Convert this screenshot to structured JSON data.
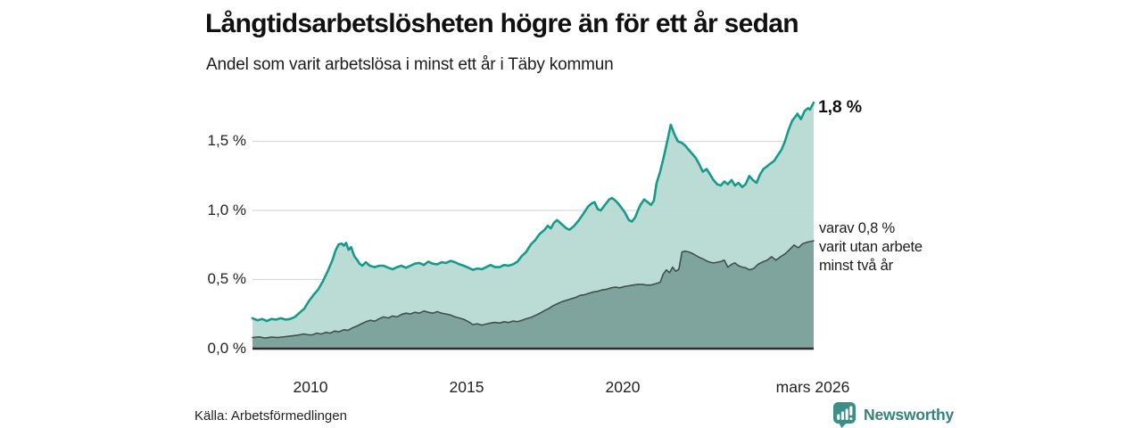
{
  "chart_data": {
    "type": "area",
    "title": "Långtidsarbetslösheten högre än för ett år sedan",
    "subtitle": "Andel som varit arbetslösa i minst ett år i Täby kommun",
    "xlabel": "",
    "ylabel": "",
    "x_domain": [
      2008.14,
      2026.12
    ],
    "ylim": [
      0,
      1.85
    ],
    "grid": "horizontal",
    "legend_position": "none-direct-labels",
    "x_ticks": [
      2010,
      2015,
      2020,
      2026.17
    ],
    "x_tick_labels": [
      "2010",
      "2015",
      "2020",
      "mars 2026"
    ],
    "y_ticks": [
      0,
      0.5,
      1.0,
      1.5
    ],
    "y_tick_labels": [
      "0,0 %",
      "0,5 %",
      "1,0 %",
      "1,5 %"
    ],
    "annotations": {
      "latest_total": {
        "text": "1,8 %",
        "value": 1.8
      },
      "subset": {
        "lines": [
          "varav 0,8 %",
          "varit utan arbete",
          "minst två år"
        ],
        "value": 0.8
      }
    },
    "series": [
      {
        "name": "Arbetslösa minst ett år",
        "stroke": "#179a8c",
        "fill": "#b5d9d2",
        "stroke_width": 2.6,
        "points": [
          [
            2008.14,
            0.22
          ],
          [
            2008.3,
            0.205
          ],
          [
            2008.45,
            0.215
          ],
          [
            2008.6,
            0.2
          ],
          [
            2008.75,
            0.215
          ],
          [
            2008.9,
            0.21
          ],
          [
            2009.05,
            0.22
          ],
          [
            2009.2,
            0.21
          ],
          [
            2009.35,
            0.215
          ],
          [
            2009.5,
            0.23
          ],
          [
            2009.65,
            0.26
          ],
          [
            2009.8,
            0.29
          ],
          [
            2009.95,
            0.345
          ],
          [
            2010.1,
            0.39
          ],
          [
            2010.25,
            0.43
          ],
          [
            2010.4,
            0.49
          ],
          [
            2010.55,
            0.56
          ],
          [
            2010.7,
            0.64
          ],
          [
            2010.8,
            0.71
          ],
          [
            2010.9,
            0.755
          ],
          [
            2011.0,
            0.76
          ],
          [
            2011.07,
            0.745
          ],
          [
            2011.14,
            0.765
          ],
          [
            2011.22,
            0.715
          ],
          [
            2011.3,
            0.735
          ],
          [
            2011.4,
            0.67
          ],
          [
            2011.5,
            0.64
          ],
          [
            2011.57,
            0.615
          ],
          [
            2011.66,
            0.6
          ],
          [
            2011.77,
            0.625
          ],
          [
            2011.9,
            0.6
          ],
          [
            2012.06,
            0.59
          ],
          [
            2012.2,
            0.6
          ],
          [
            2012.34,
            0.6
          ],
          [
            2012.49,
            0.585
          ],
          [
            2012.63,
            0.575
          ],
          [
            2012.77,
            0.59
          ],
          [
            2012.91,
            0.6
          ],
          [
            2013.06,
            0.585
          ],
          [
            2013.2,
            0.6
          ],
          [
            2013.34,
            0.615
          ],
          [
            2013.49,
            0.62
          ],
          [
            2013.63,
            0.605
          ],
          [
            2013.77,
            0.63
          ],
          [
            2013.91,
            0.615
          ],
          [
            2014.06,
            0.61
          ],
          [
            2014.2,
            0.625
          ],
          [
            2014.34,
            0.62
          ],
          [
            2014.49,
            0.635
          ],
          [
            2014.63,
            0.625
          ],
          [
            2014.77,
            0.61
          ],
          [
            2014.91,
            0.6
          ],
          [
            2015.06,
            0.585
          ],
          [
            2015.2,
            0.57
          ],
          [
            2015.34,
            0.58
          ],
          [
            2015.49,
            0.575
          ],
          [
            2015.63,
            0.59
          ],
          [
            2015.77,
            0.605
          ],
          [
            2015.91,
            0.59
          ],
          [
            2016.06,
            0.59
          ],
          [
            2016.2,
            0.605
          ],
          [
            2016.34,
            0.6
          ],
          [
            2016.49,
            0.61
          ],
          [
            2016.63,
            0.63
          ],
          [
            2016.77,
            0.67
          ],
          [
            2016.91,
            0.7
          ],
          [
            2017.06,
            0.755
          ],
          [
            2017.2,
            0.785
          ],
          [
            2017.34,
            0.83
          ],
          [
            2017.5,
            0.86
          ],
          [
            2017.6,
            0.89
          ],
          [
            2017.7,
            0.87
          ],
          [
            2017.8,
            0.91
          ],
          [
            2017.9,
            0.93
          ],
          [
            2018.0,
            0.91
          ],
          [
            2018.1,
            0.89
          ],
          [
            2018.2,
            0.87
          ],
          [
            2018.3,
            0.86
          ],
          [
            2018.45,
            0.89
          ],
          [
            2018.6,
            0.93
          ],
          [
            2018.75,
            0.98
          ],
          [
            2018.9,
            1.03
          ],
          [
            2019.0,
            1.05
          ],
          [
            2019.1,
            1.06
          ],
          [
            2019.2,
            1.01
          ],
          [
            2019.3,
            1.0
          ],
          [
            2019.43,
            1.04
          ],
          [
            2019.57,
            1.08
          ],
          [
            2019.66,
            1.09
          ],
          [
            2019.77,
            1.07
          ],
          [
            2019.86,
            1.05
          ],
          [
            2020.06,
            0.99
          ],
          [
            2020.2,
            0.93
          ],
          [
            2020.3,
            0.92
          ],
          [
            2020.4,
            0.95
          ],
          [
            2020.49,
            1.0
          ],
          [
            2020.57,
            1.04
          ],
          [
            2020.69,
            1.08
          ],
          [
            2020.8,
            1.06
          ],
          [
            2020.91,
            1.04
          ],
          [
            2021.0,
            1.07
          ],
          [
            2021.09,
            1.2
          ],
          [
            2021.2,
            1.28
          ],
          [
            2021.31,
            1.38
          ],
          [
            2021.43,
            1.5
          ],
          [
            2021.54,
            1.62
          ],
          [
            2021.66,
            1.55
          ],
          [
            2021.77,
            1.5
          ],
          [
            2021.89,
            1.49
          ],
          [
            2022.0,
            1.47
          ],
          [
            2022.11,
            1.44
          ],
          [
            2022.23,
            1.41
          ],
          [
            2022.34,
            1.38
          ],
          [
            2022.46,
            1.33
          ],
          [
            2022.57,
            1.28
          ],
          [
            2022.69,
            1.3
          ],
          [
            2022.8,
            1.26
          ],
          [
            2022.91,
            1.22
          ],
          [
            2023.03,
            1.19
          ],
          [
            2023.14,
            1.18
          ],
          [
            2023.26,
            1.21
          ],
          [
            2023.37,
            1.19
          ],
          [
            2023.49,
            1.22
          ],
          [
            2023.6,
            1.18
          ],
          [
            2023.71,
            1.2
          ],
          [
            2023.83,
            1.17
          ],
          [
            2023.94,
            1.19
          ],
          [
            2024.06,
            1.25
          ],
          [
            2024.17,
            1.22
          ],
          [
            2024.29,
            1.2
          ],
          [
            2024.4,
            1.26
          ],
          [
            2024.51,
            1.3
          ],
          [
            2024.63,
            1.32
          ],
          [
            2024.74,
            1.34
          ],
          [
            2024.86,
            1.36
          ],
          [
            2024.97,
            1.4
          ],
          [
            2025.09,
            1.44
          ],
          [
            2025.2,
            1.5
          ],
          [
            2025.31,
            1.58
          ],
          [
            2025.43,
            1.65
          ],
          [
            2025.54,
            1.68
          ],
          [
            2025.6,
            1.7
          ],
          [
            2025.71,
            1.66
          ],
          [
            2025.83,
            1.72
          ],
          [
            2025.94,
            1.74
          ],
          [
            2026.0,
            1.73
          ],
          [
            2026.12,
            1.78
          ]
        ]
      },
      {
        "name": "Varav utan arbete minst två år",
        "stroke": "#41504c",
        "fill": "#7ea49d",
        "stroke_width": 1.6,
        "points": [
          [
            2008.14,
            0.08
          ],
          [
            2008.35,
            0.085
          ],
          [
            2008.55,
            0.077
          ],
          [
            2008.75,
            0.083
          ],
          [
            2008.95,
            0.08
          ],
          [
            2009.2,
            0.087
          ],
          [
            2009.4,
            0.092
          ],
          [
            2009.6,
            0.098
          ],
          [
            2009.77,
            0.106
          ],
          [
            2009.95,
            0.1
          ],
          [
            2010.06,
            0.1
          ],
          [
            2010.2,
            0.112
          ],
          [
            2010.34,
            0.106
          ],
          [
            2010.49,
            0.118
          ],
          [
            2010.63,
            0.112
          ],
          [
            2010.77,
            0.127
          ],
          [
            2010.91,
            0.122
          ],
          [
            2011.06,
            0.137
          ],
          [
            2011.2,
            0.133
          ],
          [
            2011.34,
            0.15
          ],
          [
            2011.49,
            0.164
          ],
          [
            2011.63,
            0.18
          ],
          [
            2011.77,
            0.195
          ],
          [
            2011.91,
            0.205
          ],
          [
            2012.06,
            0.199
          ],
          [
            2012.2,
            0.216
          ],
          [
            2012.34,
            0.23
          ],
          [
            2012.49,
            0.222
          ],
          [
            2012.63,
            0.236
          ],
          [
            2012.77,
            0.23
          ],
          [
            2012.91,
            0.247
          ],
          [
            2013.06,
            0.257
          ],
          [
            2013.2,
            0.251
          ],
          [
            2013.34,
            0.263
          ],
          [
            2013.49,
            0.257
          ],
          [
            2013.63,
            0.272
          ],
          [
            2013.77,
            0.263
          ],
          [
            2013.91,
            0.257
          ],
          [
            2014.06,
            0.268
          ],
          [
            2014.2,
            0.257
          ],
          [
            2014.34,
            0.251
          ],
          [
            2014.49,
            0.243
          ],
          [
            2014.63,
            0.23
          ],
          [
            2014.77,
            0.222
          ],
          [
            2014.91,
            0.212
          ],
          [
            2015.06,
            0.195
          ],
          [
            2015.2,
            0.174
          ],
          [
            2015.34,
            0.18
          ],
          [
            2015.49,
            0.17
          ],
          [
            2015.63,
            0.178
          ],
          [
            2015.77,
            0.185
          ],
          [
            2015.91,
            0.19
          ],
          [
            2016.06,
            0.185
          ],
          [
            2016.2,
            0.195
          ],
          [
            2016.34,
            0.189
          ],
          [
            2016.49,
            0.2
          ],
          [
            2016.63,
            0.195
          ],
          [
            2016.77,
            0.205
          ],
          [
            2016.91,
            0.216
          ],
          [
            2017.06,
            0.226
          ],
          [
            2017.2,
            0.24
          ],
          [
            2017.34,
            0.255
          ],
          [
            2017.49,
            0.275
          ],
          [
            2017.63,
            0.29
          ],
          [
            2017.77,
            0.31
          ],
          [
            2017.91,
            0.325
          ],
          [
            2018.06,
            0.34
          ],
          [
            2018.2,
            0.35
          ],
          [
            2018.34,
            0.36
          ],
          [
            2018.49,
            0.37
          ],
          [
            2018.63,
            0.385
          ],
          [
            2018.77,
            0.39
          ],
          [
            2018.91,
            0.4
          ],
          [
            2019.06,
            0.41
          ],
          [
            2019.2,
            0.415
          ],
          [
            2019.34,
            0.425
          ],
          [
            2019.49,
            0.43
          ],
          [
            2019.63,
            0.44
          ],
          [
            2019.77,
            0.445
          ],
          [
            2019.91,
            0.44
          ],
          [
            2020.06,
            0.45
          ],
          [
            2020.2,
            0.455
          ],
          [
            2020.34,
            0.46
          ],
          [
            2020.49,
            0.465
          ],
          [
            2020.63,
            0.465
          ],
          [
            2020.77,
            0.46
          ],
          [
            2020.91,
            0.46
          ],
          [
            2021.06,
            0.47
          ],
          [
            2021.2,
            0.48
          ],
          [
            2021.3,
            0.54
          ],
          [
            2021.4,
            0.57
          ],
          [
            2021.5,
            0.55
          ],
          [
            2021.6,
            0.59
          ],
          [
            2021.7,
            0.56
          ],
          [
            2021.8,
            0.575
          ],
          [
            2021.9,
            0.7
          ],
          [
            2022.0,
            0.705
          ],
          [
            2022.11,
            0.7
          ],
          [
            2022.23,
            0.69
          ],
          [
            2022.34,
            0.675
          ],
          [
            2022.46,
            0.66
          ],
          [
            2022.57,
            0.65
          ],
          [
            2022.69,
            0.635
          ],
          [
            2022.8,
            0.625
          ],
          [
            2022.91,
            0.62
          ],
          [
            2023.03,
            0.625
          ],
          [
            2023.14,
            0.63
          ],
          [
            2023.26,
            0.64
          ],
          [
            2023.37,
            0.59
          ],
          [
            2023.49,
            0.61
          ],
          [
            2023.6,
            0.62
          ],
          [
            2023.71,
            0.6
          ],
          [
            2023.83,
            0.59
          ],
          [
            2023.94,
            0.585
          ],
          [
            2024.06,
            0.57
          ],
          [
            2024.2,
            0.58
          ],
          [
            2024.34,
            0.61
          ],
          [
            2024.51,
            0.63
          ],
          [
            2024.63,
            0.64
          ],
          [
            2024.77,
            0.665
          ],
          [
            2024.91,
            0.64
          ],
          [
            2025.06,
            0.665
          ],
          [
            2025.2,
            0.685
          ],
          [
            2025.34,
            0.715
          ],
          [
            2025.49,
            0.75
          ],
          [
            2025.63,
            0.73
          ],
          [
            2025.77,
            0.76
          ],
          [
            2025.91,
            0.77
          ],
          [
            2026.0,
            0.775
          ],
          [
            2026.12,
            0.78
          ]
        ]
      }
    ]
  },
  "footer": {
    "source": "Källa: Arbetsförmedlingen",
    "brand": "Newsworthy"
  },
  "colors": {
    "accent_teal": "#179a8c",
    "area_light": "#b5d9d2",
    "area_dark": "#7ea49d",
    "line_dark": "#41504c",
    "grid": "#d9d9d9",
    "baseline": "#2d2d2d",
    "text": "#1a1a1a",
    "brand_teal": "#3d8e88"
  }
}
